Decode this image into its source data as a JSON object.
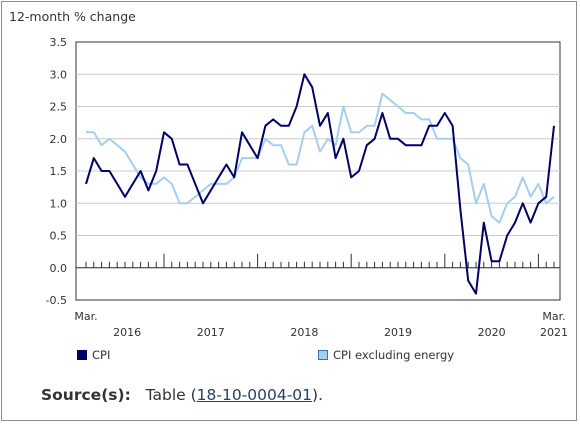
{
  "chart_data": {
    "type": "line",
    "title": "",
    "ylabel": "12-month % change",
    "ylim": [
      -0.5,
      3.5
    ],
    "yticks": [
      "3.5",
      "3.0",
      "2.5",
      "2.0",
      "1.5",
      "1.0",
      "0.5",
      "0.0",
      "-0.5"
    ],
    "ytick_values": [
      3.5,
      3.0,
      2.5,
      2.0,
      1.5,
      1.0,
      0.5,
      0.0,
      -0.5
    ],
    "x_start": "Mar. 2016",
    "x_end": "Mar. 2021",
    "x_first_label": "Mar.",
    "x_last_label": "Mar.",
    "year_labels": [
      "2016",
      "2017",
      "2018",
      "2019",
      "2020",
      "2021"
    ],
    "series": [
      {
        "name": "CPI",
        "color": "#000066",
        "values": [
          1.3,
          1.7,
          1.5,
          1.5,
          1.3,
          1.1,
          1.3,
          1.5,
          1.2,
          1.5,
          2.1,
          2.0,
          1.6,
          1.6,
          1.3,
          1.0,
          1.2,
          1.4,
          1.6,
          1.4,
          2.1,
          1.9,
          1.7,
          2.2,
          2.3,
          2.2,
          2.2,
          2.5,
          3.0,
          2.8,
          2.2,
          2.4,
          1.7,
          2.0,
          1.4,
          1.5,
          1.9,
          2.0,
          2.4,
          2.0,
          2.0,
          1.9,
          1.9,
          1.9,
          2.2,
          2.2,
          2.4,
          2.2,
          0.9,
          -0.2,
          -0.4,
          0.7,
          0.1,
          0.1,
          0.5,
          0.7,
          1.0,
          0.7,
          1.0,
          1.1,
          2.2
        ]
      },
      {
        "name": "CPI excluding energy",
        "color": "#a6cfee",
        "values": [
          2.1,
          2.1,
          1.9,
          2.0,
          1.9,
          1.8,
          1.6,
          1.4,
          1.3,
          1.3,
          1.4,
          1.3,
          1.0,
          1.0,
          1.1,
          1.2,
          1.3,
          1.3,
          1.3,
          1.4,
          1.7,
          1.7,
          1.7,
          2.0,
          1.9,
          1.9,
          1.6,
          1.6,
          2.1,
          2.2,
          1.8,
          2.0,
          1.9,
          2.5,
          2.1,
          2.1,
          2.2,
          2.2,
          2.7,
          2.6,
          2.5,
          2.4,
          2.4,
          2.3,
          2.3,
          2.0,
          2.0,
          2.0,
          1.7,
          1.6,
          1.0,
          1.3,
          0.8,
          0.7,
          1.0,
          1.1,
          1.4,
          1.1,
          1.3,
          1.0,
          1.1
        ]
      }
    ],
    "grid": true,
    "legend_position": "bottom"
  },
  "source": {
    "label": "Source(s):",
    "text_before": "Table (",
    "link_text": "18-10-0004-01",
    "text_after": ")."
  }
}
